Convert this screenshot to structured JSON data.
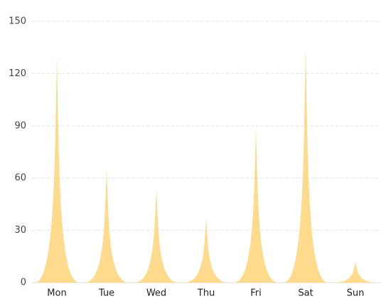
{
  "chart_data": {
    "type": "pictorialBar",
    "categories": [
      "Mon",
      "Tue",
      "Wed",
      "Thu",
      "Fri",
      "Sat",
      "Sun"
    ],
    "values": [
      130,
      65,
      54,
      37,
      88,
      135,
      12
    ],
    "color": "#fdd886",
    "ylim": [
      0,
      150
    ],
    "yticks": [
      0,
      30,
      60,
      90,
      120,
      150
    ],
    "grid": true
  }
}
